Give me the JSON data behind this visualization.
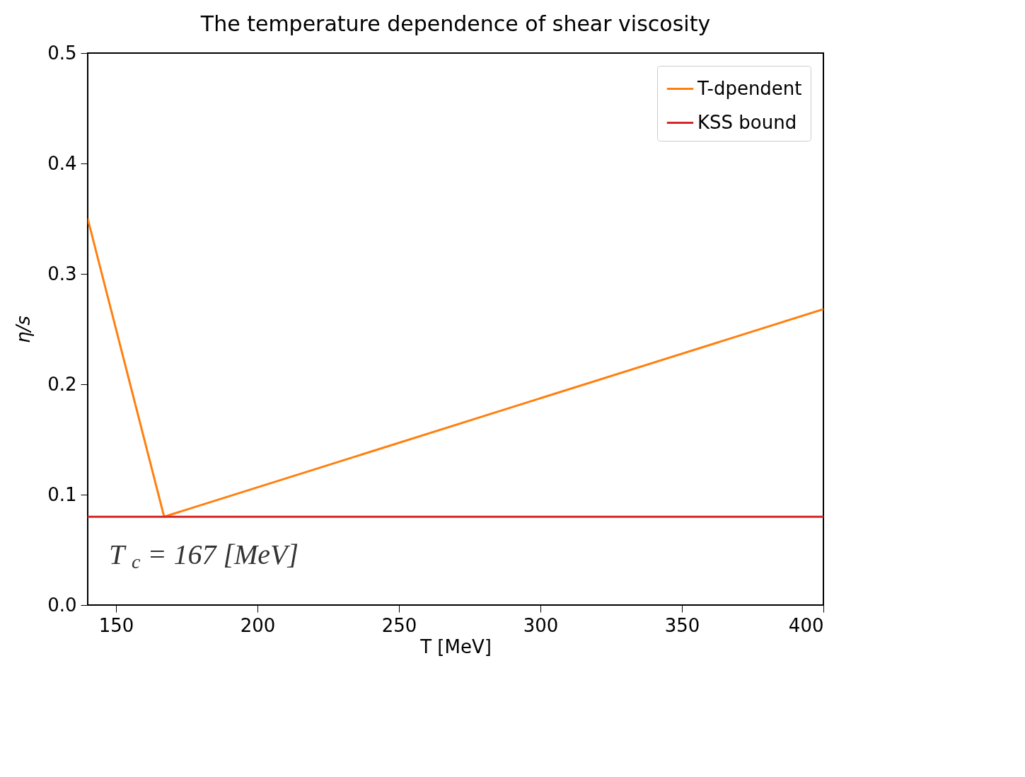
{
  "chart_data": {
    "type": "line",
    "title": "The temperature dependence of shear viscosity",
    "xlabel": "T [MeV]",
    "ylabel": "η/s",
    "series": [
      {
        "name": "T-dpendent",
        "color": "#ff7f0e",
        "x": [
          140,
          167,
          400
        ],
        "values": [
          0.35,
          0.08,
          0.268
        ]
      },
      {
        "name": "KSS bound",
        "color": "#d62728",
        "x": [
          140,
          400
        ],
        "values": [
          0.08,
          0.08
        ]
      }
    ],
    "xlim": [
      140,
      400
    ],
    "ylim": [
      0,
      0.5
    ],
    "xticks": [
      150,
      200,
      250,
      300,
      350,
      400
    ],
    "yticks": [
      {
        "value": 0,
        "label": "0.0"
      },
      0.1,
      0.2,
      0.3,
      0.4,
      0.5
    ],
    "annotations": [
      "T$_{c}$ = 167 [MeV]"
    ],
    "grid": false,
    "legend": "top right",
    "marker": "none",
    "line_style": "solid"
  }
}
